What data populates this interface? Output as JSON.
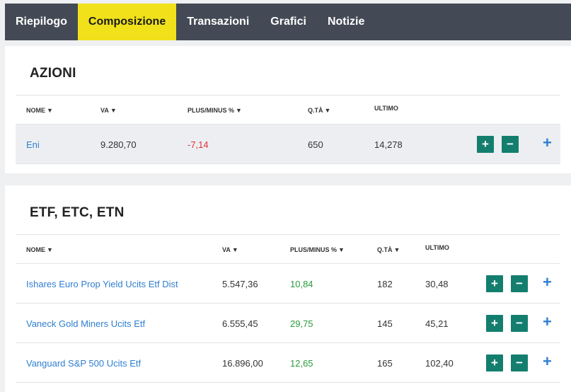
{
  "nav": {
    "tabs": [
      {
        "label": "Riepilogo"
      },
      {
        "label": "Composizione"
      },
      {
        "label": "Transazioni"
      },
      {
        "label": "Grafici"
      },
      {
        "label": "Notizie"
      }
    ],
    "active_tab": "Composizione"
  },
  "azioni": {
    "title": "AZIONI",
    "headers": {
      "nome": "NOME",
      "va": "VA",
      "plusminus": "PLUS/MINUS %",
      "qta": "Q.TÀ",
      "ultimo": "ULTIMO"
    },
    "rows": [
      {
        "nome": "Eni",
        "va": "9.280,70",
        "plusminus": "-7,14",
        "qta": "650",
        "ultimo": "14,278"
      }
    ]
  },
  "etf": {
    "title": "ETF, ETC, ETN",
    "headers": {
      "nome": "NOME",
      "va": "VA",
      "plusminus": "PLUS/MINUS %",
      "qta": "Q.TÀ",
      "ultimo": "ULTIMO"
    },
    "rows": [
      {
        "nome": "Ishares Euro Prop Yield Ucits Etf Dist",
        "va": "5.547,36",
        "plusminus": "10,84",
        "qta": "182",
        "ultimo": "30,48"
      },
      {
        "nome": "Vaneck Gold Miners Ucits Etf",
        "va": "6.555,45",
        "plusminus": "29,75",
        "qta": "145",
        "ultimo": "45,21"
      },
      {
        "nome": "Vanguard S&P 500 Ucits Etf",
        "va": "16.896,00",
        "plusminus": "12,65",
        "qta": "165",
        "ultimo": "102,40"
      }
    ]
  },
  "controls": {
    "plus": "+",
    "minus": "−",
    "expand": "+",
    "sort": "▼"
  },
  "colors": {
    "nav_bg": "#444a55",
    "active_tab": "#f0e11a",
    "button": "#137e6e",
    "link": "#2f7fd0",
    "negative": "#e0323b",
    "positive": "#2a9b3a"
  }
}
